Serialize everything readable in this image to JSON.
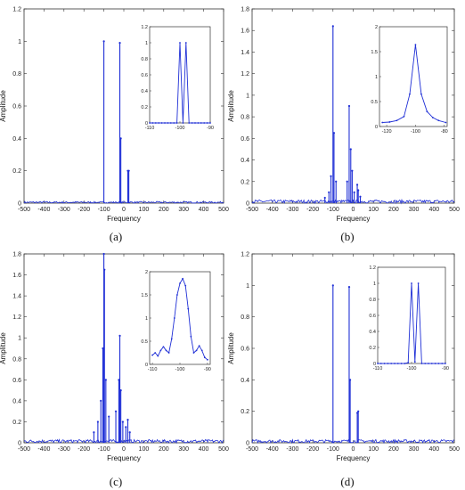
{
  "colors": {
    "series": "#1f2fd6",
    "axis": "#333333"
  },
  "chart_data": [
    {
      "type": "line",
      "panel_label": "(a)",
      "xlabel": "Frequency",
      "ylabel": "Amplitude",
      "xlim": [
        -500,
        500
      ],
      "ylim": [
        0,
        1.2
      ],
      "xticks": [
        -500,
        -400,
        -300,
        -200,
        -100,
        0,
        100,
        200,
        300,
        400,
        500
      ],
      "yticks": [
        0,
        0.2,
        0.4,
        0.6,
        0.8,
        1,
        1.2
      ],
      "noise": 0.01,
      "peaks": [
        {
          "x": -100,
          "y": 1.0
        },
        {
          "x": -20,
          "y": 0.99
        },
        {
          "x": -15,
          "y": 0.4
        },
        {
          "x": 20,
          "y": 0.2
        },
        {
          "x": 25,
          "y": 0.2
        }
      ],
      "inset": {
        "xlim": [
          -110,
          -90
        ],
        "ylim": [
          0,
          1.2
        ],
        "xticks": [
          -110,
          -100,
          -90
        ],
        "yticks": [
          0,
          0.2,
          0.4,
          0.6,
          0.8,
          1,
          1.2
        ],
        "points": [
          [
            -110,
            0
          ],
          [
            -109,
            0
          ],
          [
            -108,
            0
          ],
          [
            -107,
            0
          ],
          [
            -106,
            0
          ],
          [
            -105,
            0
          ],
          [
            -104,
            0
          ],
          [
            -103,
            0
          ],
          [
            -102,
            0
          ],
          [
            -101,
            0
          ],
          [
            -100,
            1.0
          ],
          [
            -99,
            0
          ],
          [
            -98,
            1.0
          ],
          [
            -97,
            0
          ],
          [
            -96,
            0
          ],
          [
            -95,
            0
          ],
          [
            -94,
            0
          ],
          [
            -93,
            0
          ],
          [
            -92,
            0
          ],
          [
            -91,
            0
          ],
          [
            -90,
            0
          ]
        ]
      }
    },
    {
      "type": "line",
      "panel_label": "(b)",
      "xlabel": "Frequency",
      "ylabel": "Amplitude",
      "xlim": [
        -500,
        500
      ],
      "ylim": [
        0,
        1.8
      ],
      "xticks": [
        -500,
        -400,
        -300,
        -200,
        -100,
        0,
        100,
        200,
        300,
        400,
        500
      ],
      "yticks": [
        0,
        0.2,
        0.4,
        0.6,
        0.8,
        1,
        1.2,
        1.4,
        1.6,
        1.8
      ],
      "noise": 0.03,
      "peaks": [
        {
          "x": -140,
          "y": 0.05
        },
        {
          "x": -120,
          "y": 0.1
        },
        {
          "x": -110,
          "y": 0.25
        },
        {
          "x": -100,
          "y": 1.64
        },
        {
          "x": -95,
          "y": 0.65
        },
        {
          "x": -85,
          "y": 0.2
        },
        {
          "x": -30,
          "y": 0.2
        },
        {
          "x": -20,
          "y": 0.9
        },
        {
          "x": -12,
          "y": 0.5
        },
        {
          "x": -5,
          "y": 0.3
        },
        {
          "x": 5,
          "y": 0.1
        },
        {
          "x": 20,
          "y": 0.17
        },
        {
          "x": 25,
          "y": 0.12
        },
        {
          "x": 35,
          "y": 0.06
        }
      ],
      "inset": {
        "xlim": [
          -125,
          -78
        ],
        "ylim": [
          0,
          2
        ],
        "xticks": [
          -120,
          -100,
          -80
        ],
        "yticks": [
          0,
          0.5,
          1,
          1.5,
          2
        ],
        "points": [
          [
            -123,
            0.08
          ],
          [
            -118,
            0.09
          ],
          [
            -113,
            0.12
          ],
          [
            -108,
            0.2
          ],
          [
            -104,
            0.65
          ],
          [
            -100,
            1.64
          ],
          [
            -96,
            0.65
          ],
          [
            -92,
            0.3
          ],
          [
            -88,
            0.18
          ],
          [
            -84,
            0.12
          ],
          [
            -79,
            0.08
          ]
        ]
      }
    },
    {
      "type": "line",
      "panel_label": "(c)",
      "xlabel": "Frequency",
      "ylabel": "Amplitude",
      "xlim": [
        -500,
        500
      ],
      "ylim": [
        0,
        1.8
      ],
      "xticks": [
        -500,
        -400,
        -300,
        -200,
        -100,
        0,
        100,
        200,
        300,
        400,
        500
      ],
      "yticks": [
        0,
        0.2,
        0.4,
        0.6,
        0.8,
        1,
        1.2,
        1.4,
        1.6,
        1.8
      ],
      "noise": 0.03,
      "peaks": [
        {
          "x": -150,
          "y": 0.1
        },
        {
          "x": -130,
          "y": 0.2
        },
        {
          "x": -115,
          "y": 0.4
        },
        {
          "x": -105,
          "y": 0.9
        },
        {
          "x": -100,
          "y": 1.8
        },
        {
          "x": -97,
          "y": 1.65
        },
        {
          "x": -90,
          "y": 0.6
        },
        {
          "x": -75,
          "y": 0.25
        },
        {
          "x": -40,
          "y": 0.3
        },
        {
          "x": -25,
          "y": 0.6
        },
        {
          "x": -20,
          "y": 1.02
        },
        {
          "x": -15,
          "y": 0.5
        },
        {
          "x": -5,
          "y": 0.2
        },
        {
          "x": 10,
          "y": 0.15
        },
        {
          "x": 20,
          "y": 0.22
        },
        {
          "x": 30,
          "y": 0.1
        }
      ],
      "inset": {
        "xlim": [
          -111,
          -89
        ],
        "ylim": [
          0,
          2
        ],
        "xticks": [
          -110,
          -100,
          -90
        ],
        "yticks": [
          0,
          0.5,
          1,
          1.5,
          2
        ],
        "points": [
          [
            -110,
            0.2
          ],
          [
            -109,
            0.25
          ],
          [
            -108,
            0.18
          ],
          [
            -107,
            0.3
          ],
          [
            -106,
            0.38
          ],
          [
            -105,
            0.3
          ],
          [
            -104,
            0.25
          ],
          [
            -103,
            0.55
          ],
          [
            -102,
            1.0
          ],
          [
            -101,
            1.5
          ],
          [
            -100,
            1.75
          ],
          [
            -99,
            1.85
          ],
          [
            -98,
            1.7
          ],
          [
            -97,
            1.2
          ],
          [
            -96,
            0.6
          ],
          [
            -95,
            0.25
          ],
          [
            -94,
            0.3
          ],
          [
            -93,
            0.4
          ],
          [
            -92,
            0.3
          ],
          [
            -91,
            0.15
          ],
          [
            -90,
            0.1
          ]
        ]
      }
    },
    {
      "type": "line",
      "panel_label": "(d)",
      "xlabel": "Frequency",
      "ylabel": "Amplitude",
      "xlim": [
        -500,
        500
      ],
      "ylim": [
        0,
        1.2
      ],
      "xticks": [
        -500,
        -400,
        -300,
        -200,
        -100,
        0,
        100,
        200,
        300,
        400,
        500
      ],
      "yticks": [
        0,
        0.2,
        0.4,
        0.6,
        0.8,
        1,
        1.2
      ],
      "noise": 0.02,
      "peaks": [
        {
          "x": -100,
          "y": 1.0
        },
        {
          "x": -20,
          "y": 0.99
        },
        {
          "x": -15,
          "y": 0.4
        },
        {
          "x": 20,
          "y": 0.19
        },
        {
          "x": 25,
          "y": 0.2
        }
      ],
      "inset": {
        "xlim": [
          -110,
          -90
        ],
        "ylim": [
          0,
          1.2
        ],
        "xticks": [
          -110,
          -100,
          -90
        ],
        "yticks": [
          0,
          0.2,
          0.4,
          0.6,
          0.8,
          1,
          1.2
        ],
        "points": [
          [
            -110,
            0
          ],
          [
            -109,
            0
          ],
          [
            -108,
            0
          ],
          [
            -107,
            0
          ],
          [
            -106,
            0
          ],
          [
            -105,
            0
          ],
          [
            -104,
            0
          ],
          [
            -103,
            0
          ],
          [
            -102,
            0
          ],
          [
            -101,
            0.01
          ],
          [
            -100,
            1.0
          ],
          [
            -99,
            0.02
          ],
          [
            -98,
            1.0
          ],
          [
            -97,
            0
          ],
          [
            -96,
            0
          ],
          [
            -95,
            0
          ],
          [
            -94,
            0
          ],
          [
            -93,
            0
          ],
          [
            -92,
            0
          ],
          [
            -91,
            0
          ],
          [
            -90,
            0
          ]
        ]
      }
    }
  ]
}
